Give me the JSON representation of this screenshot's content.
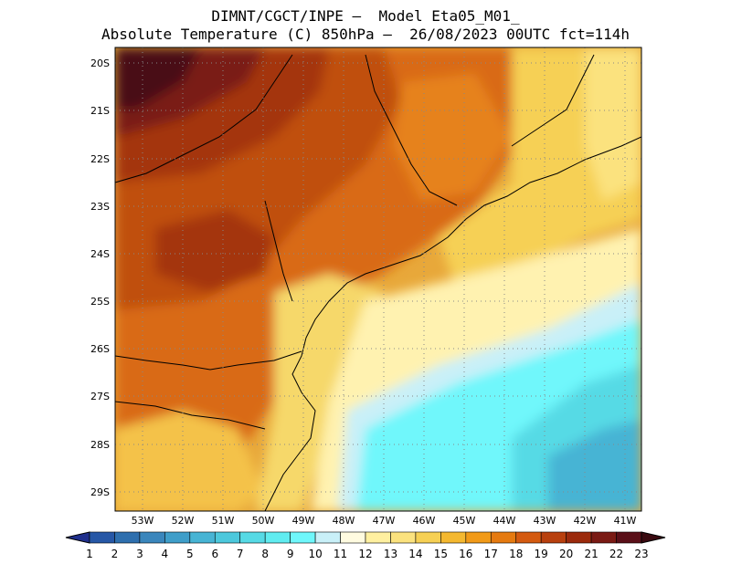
{
  "header": {
    "line1": "DIMNT/CGCT/INPE –  Model Eta05_M01_",
    "line2": "Absolute Temperature (C) 850hPa –  26/08/2023 00UTC fct=114h"
  },
  "map": {
    "lat_labels": [
      "20S",
      "21S",
      "22S",
      "23S",
      "24S",
      "25S",
      "26S",
      "27S",
      "28S",
      "29S"
    ],
    "lon_labels": [
      "53W",
      "52W",
      "51W",
      "50W",
      "49W",
      "48W",
      "47W",
      "46W",
      "45W",
      "44W",
      "43W",
      "42W",
      "41W"
    ],
    "lat_range": [
      -29.5,
      -19.5
    ],
    "lon_range": [
      -53.5,
      -40.7
    ],
    "grid": true
  },
  "colorbar": {
    "labels": [
      "1",
      "2",
      "3",
      "4",
      "5",
      "6",
      "7",
      "8",
      "9",
      "10",
      "11",
      "12",
      "13",
      "14",
      "15",
      "16",
      "17",
      "18",
      "19",
      "20",
      "21",
      "22",
      "23"
    ],
    "colors": [
      "#1f2f8c",
      "#2657a6",
      "#2e6fae",
      "#3a86bc",
      "#3f9ec9",
      "#47b4d4",
      "#4cc8dc",
      "#56dae5",
      "#60ecf0",
      "#6ff7fb",
      "#c9f0f8",
      "#fffbe0",
      "#fff0a0",
      "#fbe27e",
      "#f6d054",
      "#f4b830",
      "#f19a18",
      "#e57a10",
      "#d45a10",
      "#b8400e",
      "#9b2a0c",
      "#7a1a14",
      "#5a0f18",
      "#3a0a10"
    ]
  }
}
